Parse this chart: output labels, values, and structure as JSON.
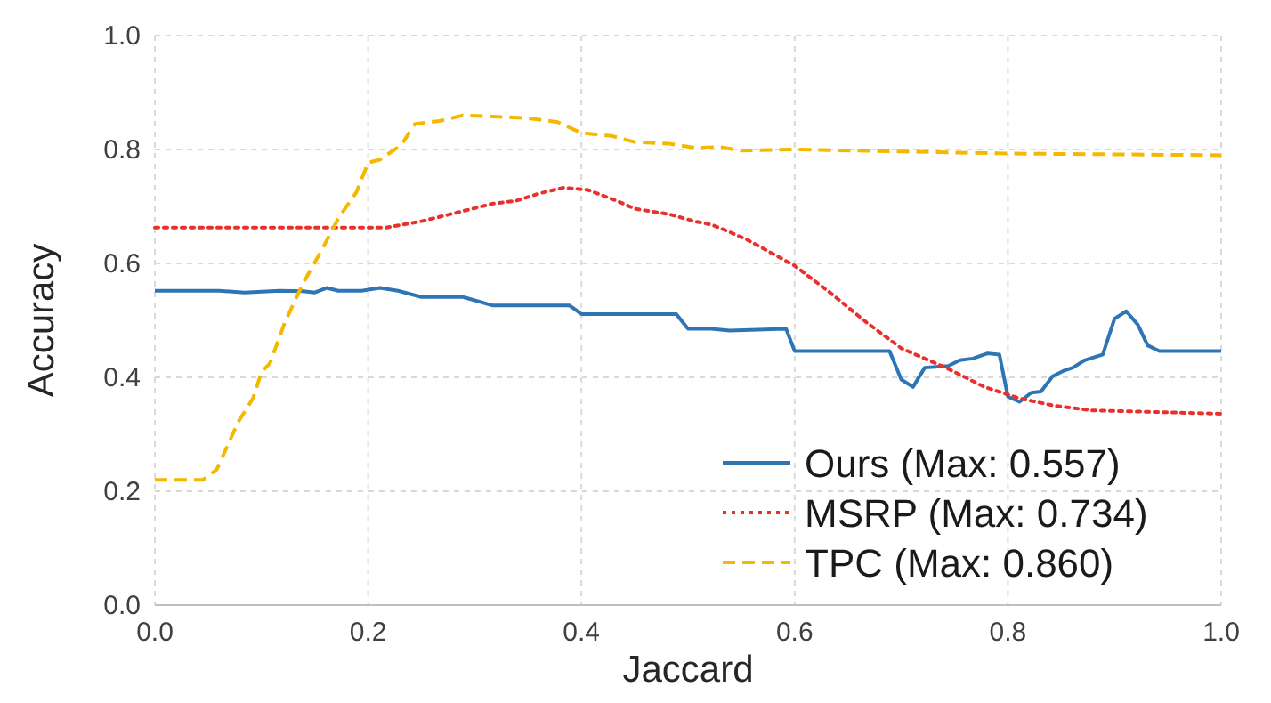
{
  "chart_data": {
    "type": "line",
    "xlabel": "Jaccard",
    "ylabel": "Accuracy",
    "xlim": [
      0,
      1
    ],
    "ylim": [
      0,
      1
    ],
    "xticks": [
      {
        "value": 0,
        "label": "0.0"
      },
      0.2,
      0.4,
      0.6,
      0.8,
      {
        "value": 1,
        "label": "1.0"
      }
    ],
    "yticks": [
      {
        "value": 0,
        "label": "0.0"
      },
      0.2,
      0.4,
      0.6,
      0.8,
      {
        "value": 1,
        "label": "1.0"
      }
    ],
    "grid": true,
    "legend": "bottom right",
    "marker": "none",
    "series": [
      {
        "name": "Ours (Max: 0.557)",
        "color": "#2e75b6",
        "line_style": "solid",
        "x": [
          0,
          0.06,
          0.084,
          0.117,
          0.139,
          0.15,
          0.161,
          0.172,
          0.194,
          0.211,
          0.228,
          0.25,
          0.289,
          0.317,
          0.389,
          0.4,
          0.489,
          0.5,
          0.522,
          0.539,
          0.592,
          0.6,
          0.689,
          0.7,
          0.711,
          0.722,
          0.744,
          0.755,
          0.767,
          0.781,
          0.792,
          0.8,
          0.811,
          0.822,
          0.831,
          0.842,
          0.853,
          0.861,
          0.872,
          0.889,
          0.9,
          0.911,
          0.922,
          0.931,
          0.942,
          1
        ],
        "values": [
          0.552,
          0.552,
          0.549,
          0.552,
          0.551,
          0.549,
          0.557,
          0.552,
          0.552,
          0.557,
          0.552,
          0.541,
          0.541,
          0.526,
          0.526,
          0.511,
          0.511,
          0.485,
          0.485,
          0.482,
          0.485,
          0.446,
          0.446,
          0.396,
          0.383,
          0.417,
          0.42,
          0.43,
          0.433,
          0.442,
          0.44,
          0.366,
          0.357,
          0.373,
          0.375,
          0.402,
          0.412,
          0.417,
          0.43,
          0.44,
          0.503,
          0.516,
          0.492,
          0.456,
          0.446,
          0.446
        ]
      },
      {
        "name": "MSRP (Max: 0.734)",
        "color": "#e8312c",
        "line_style": "dotted",
        "x": [
          0,
          0.217,
          0.25,
          0.283,
          0.317,
          0.339,
          0.361,
          0.383,
          0.406,
          0.433,
          0.45,
          0.483,
          0.506,
          0.522,
          0.539,
          0.555,
          0.6,
          0.633,
          0.667,
          0.7,
          0.744,
          0.778,
          0.811,
          0.844,
          0.878,
          1
        ],
        "values": [
          0.663,
          0.663,
          0.674,
          0.689,
          0.705,
          0.71,
          0.723,
          0.733,
          0.729,
          0.71,
          0.696,
          0.686,
          0.674,
          0.668,
          0.655,
          0.642,
          0.596,
          0.549,
          0.497,
          0.451,
          0.415,
          0.383,
          0.363,
          0.35,
          0.342,
          0.336
        ]
      },
      {
        "name": "TPC (Max: 0.860)",
        "color": "#f5b800",
        "line_style": "dashed",
        "x": [
          0,
          0.045,
          0.058,
          0.078,
          0.092,
          0.1,
          0.108,
          0.122,
          0.139,
          0.156,
          0.172,
          0.189,
          0.2,
          0.211,
          0.231,
          0.244,
          0.267,
          0.289,
          0.317,
          0.35,
          0.378,
          0.4,
          0.428,
          0.45,
          0.483,
          0.506,
          0.53,
          0.55,
          0.6,
          0.8,
          1
        ],
        "values": [
          0.22,
          0.22,
          0.238,
          0.321,
          0.363,
          0.409,
          0.425,
          0.497,
          0.565,
          0.622,
          0.679,
          0.725,
          0.777,
          0.782,
          0.808,
          0.845,
          0.85,
          0.86,
          0.858,
          0.855,
          0.848,
          0.829,
          0.824,
          0.813,
          0.81,
          0.803,
          0.804,
          0.798,
          0.8,
          0.793,
          0.79
        ]
      }
    ]
  }
}
